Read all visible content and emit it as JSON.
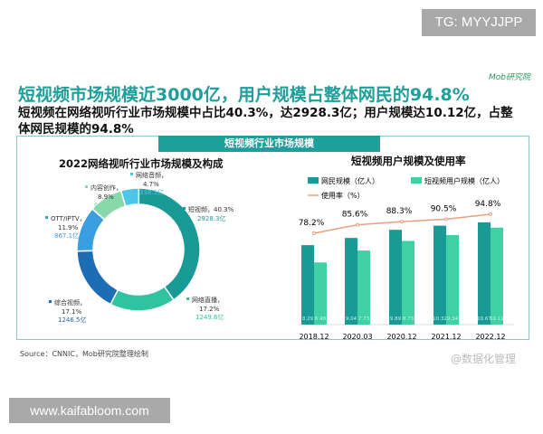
{
  "badges": {
    "top": "TG: MYYJJPP",
    "bottom": "www.kaifabloom.com"
  },
  "logo": "Mob研究院",
  "title": "短视频市场规模近3000亿，用户规模占整体网民的94.8%",
  "subtitle": "短视频在网络视听行业市场规模中占比40.3%，达2928.3亿；用户规模达10.12亿，占整体网民规模的94.8%",
  "panel_header": "短视频行业市场规模",
  "source": "Source：CNNIC，Mob研究院整理绘制",
  "weibo": "@数据化管理",
  "colors": {
    "accent": "#1f9f9c"
  },
  "chart_data": [
    {
      "type": "pie",
      "donut": true,
      "title": "2022网络视听行业市场规模及构成",
      "slices": [
        {
          "name": "短视频",
          "percent": 40.3,
          "value_label": "2928.3亿",
          "color": "#1a9a96"
        },
        {
          "name": "网络直播",
          "percent": 17.2,
          "value_label": "1249.6亿",
          "color": "#2fc3a0"
        },
        {
          "name": "综合视频",
          "percent": 17.1,
          "value_label": "1246.5亿",
          "color": "#1c6db3"
        },
        {
          "name": "OTT/IPTV",
          "percent": 11.9,
          "value_label": "867.1亿",
          "color": "#3a9fe0"
        },
        {
          "name": "内容创作",
          "percent": 8.9,
          "value_label": "648.4亿",
          "color": "#87d9a9"
        },
        {
          "name": "网络音频",
          "percent": 4.7,
          "value_label": "338.5亿",
          "color": "#4cc6ea"
        }
      ]
    },
    {
      "type": "bar",
      "title": "短视频用户规模及使用率",
      "categories": [
        "2018.12",
        "2020.03",
        "2020.12",
        "2021.12",
        "2022.12"
      ],
      "series": [
        {
          "name": "网民规模（亿人）",
          "values": [
            8.29,
            9.04,
            9.89,
            10.32,
            10.67
          ],
          "color": "#1a9a96"
        },
        {
          "name": "短视频用户规模（亿人）",
          "values": [
            6.48,
            7.73,
            8.73,
            9.34,
            10.12
          ],
          "color": "#3fd0a4"
        },
        {
          "name": "使用率（%）",
          "type": "line",
          "values": [
            78.2,
            85.6,
            88.3,
            90.5,
            94.8
          ],
          "labels": [
            "78.2%",
            "85.6%",
            "88.3%",
            "90.5%",
            "94.8%"
          ],
          "color": "#e8a080"
        }
      ]
    }
  ]
}
